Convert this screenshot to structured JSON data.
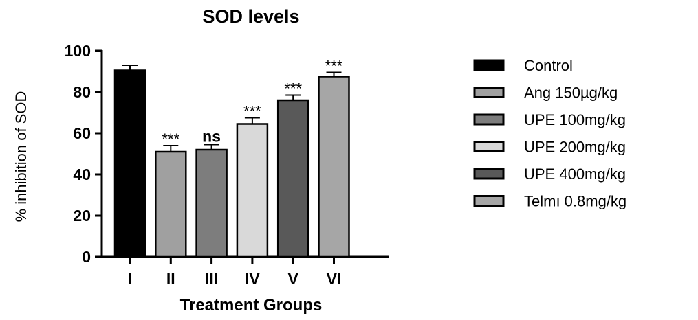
{
  "chart_data": {
    "type": "bar",
    "title": "SOD levels",
    "xlabel": "Treatment Groups",
    "ylabel": "% inhibition of SOD",
    "ylim": [
      0,
      100
    ],
    "yticks": [
      0,
      20,
      40,
      60,
      80,
      100
    ],
    "grid": false,
    "legend_position": "right",
    "categories": [
      "I",
      "II",
      "III",
      "IV",
      "V",
      "VI"
    ],
    "values": [
      90.5,
      51,
      52,
      64.5,
      76,
      87.5
    ],
    "errors": [
      2.5,
      3,
      2.5,
      3,
      2.5,
      2
    ],
    "annotations": [
      "",
      "***",
      "ns",
      "***",
      "***",
      "***"
    ],
    "legend": [
      "Control",
      "Ang 150µg/kg",
      "UPE 100mg/kg",
      "UPE 200mg/kg",
      "UPE 400mg/kg",
      "Telmı 0.8mg/kg"
    ],
    "colors": [
      "#000000",
      "#a0a0a0",
      "#7d7d7d",
      "#d9d9d9",
      "#595959",
      "#a6a6a6"
    ]
  }
}
